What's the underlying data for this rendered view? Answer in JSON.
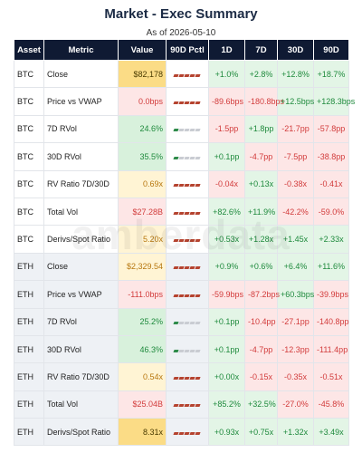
{
  "header": {
    "title": "Market - Exec Summary",
    "subtitle": "As of 2026-05-10"
  },
  "watermark": "amberdata",
  "table": {
    "columns": [
      "Asset",
      "Metric",
      "Value",
      "90D Pctl",
      "1D",
      "7D",
      "30D",
      "90D"
    ],
    "rows": [
      {
        "asset": "BTC",
        "metric": "Close",
        "value": "$82,178",
        "value_tone": "gold",
        "pctl_filled": 5,
        "pctl_color": "#b5432f",
        "changes": [
          "+1.0%",
          "+2.8%",
          "+12.8%",
          "+18.7%"
        ]
      },
      {
        "asset": "BTC",
        "metric": "Price vs VWAP",
        "value": "0.0bps",
        "value_tone": "red",
        "pctl_filled": 5,
        "pctl_color": "#b5432f",
        "changes": [
          "-89.6bps",
          "-180.8bps",
          "+12.5bps",
          "+128.3bps"
        ]
      },
      {
        "asset": "BTC",
        "metric": "7D RVol",
        "value": "24.6%",
        "value_tone": "green",
        "pctl_filled": 1,
        "pctl_color": "#2e8b4a",
        "changes": [
          "-1.5pp",
          "+1.8pp",
          "-21.7pp",
          "-57.8pp"
        ]
      },
      {
        "asset": "BTC",
        "metric": "30D RVol",
        "value": "35.5%",
        "value_tone": "green",
        "pctl_filled": 1,
        "pctl_color": "#2e8b4a",
        "changes": [
          "+0.1pp",
          "-4.7pp",
          "-7.5pp",
          "-38.8pp"
        ]
      },
      {
        "asset": "BTC",
        "metric": "RV Ratio 7D/30D",
        "value": "0.69x",
        "value_tone": "amber",
        "pctl_filled": 5,
        "pctl_color": "#b5432f",
        "changes": [
          "-0.04x",
          "+0.13x",
          "-0.38x",
          "-0.41x"
        ]
      },
      {
        "asset": "BTC",
        "metric": "Total Vol",
        "value": "$27.28B",
        "value_tone": "red",
        "pctl_filled": 5,
        "pctl_color": "#b5432f",
        "changes": [
          "+82.6%",
          "+11.9%",
          "-42.2%",
          "-59.0%"
        ]
      },
      {
        "asset": "BTC",
        "metric": "Derivs/Spot Ratio",
        "value": "5.20x",
        "value_tone": "amber",
        "pctl_filled": 5,
        "pctl_color": "#b5432f",
        "changes": [
          "+0.53x",
          "+1.28x",
          "+1.45x",
          "+2.33x"
        ]
      },
      {
        "asset": "ETH",
        "metric": "Close",
        "value": "$2,329.54",
        "value_tone": "amber",
        "pctl_filled": 5,
        "pctl_color": "#b5432f",
        "changes": [
          "+0.9%",
          "+0.6%",
          "+6.4%",
          "+11.6%"
        ]
      },
      {
        "asset": "ETH",
        "metric": "Price vs VWAP",
        "value": "-111.0bps",
        "value_tone": "red",
        "pctl_filled": 5,
        "pctl_color": "#b5432f",
        "changes": [
          "-59.9bps",
          "-87.2bps",
          "+60.3bps",
          "-39.9bps"
        ]
      },
      {
        "asset": "ETH",
        "metric": "7D RVol",
        "value": "25.2%",
        "value_tone": "green",
        "pctl_filled": 1,
        "pctl_color": "#2e8b4a",
        "changes": [
          "+0.1pp",
          "-10.4pp",
          "-27.1pp",
          "-140.8pp"
        ]
      },
      {
        "asset": "ETH",
        "metric": "30D RVol",
        "value": "46.3%",
        "value_tone": "green",
        "pctl_filled": 1,
        "pctl_color": "#2e8b4a",
        "changes": [
          "+0.1pp",
          "-4.7pp",
          "-12.3pp",
          "-111.4pp"
        ]
      },
      {
        "asset": "ETH",
        "metric": "RV Ratio 7D/30D",
        "value": "0.54x",
        "value_tone": "amber",
        "pctl_filled": 5,
        "pctl_color": "#b5432f",
        "changes": [
          "+0.00x",
          "-0.15x",
          "-0.35x",
          "-0.51x"
        ]
      },
      {
        "asset": "ETH",
        "metric": "Total Vol",
        "value": "$25.04B",
        "value_tone": "red",
        "pctl_filled": 5,
        "pctl_color": "#b5432f",
        "changes": [
          "+85.2%",
          "+32.5%",
          "-27.0%",
          "-45.8%"
        ]
      },
      {
        "asset": "ETH",
        "metric": "Derivs/Spot Ratio",
        "value": "8.31x",
        "value_tone": "gold",
        "pctl_filled": 5,
        "pctl_color": "#b5432f",
        "changes": [
          "+0.93x",
          "+0.75x",
          "+1.32x",
          "+3.49x"
        ]
      }
    ]
  }
}
